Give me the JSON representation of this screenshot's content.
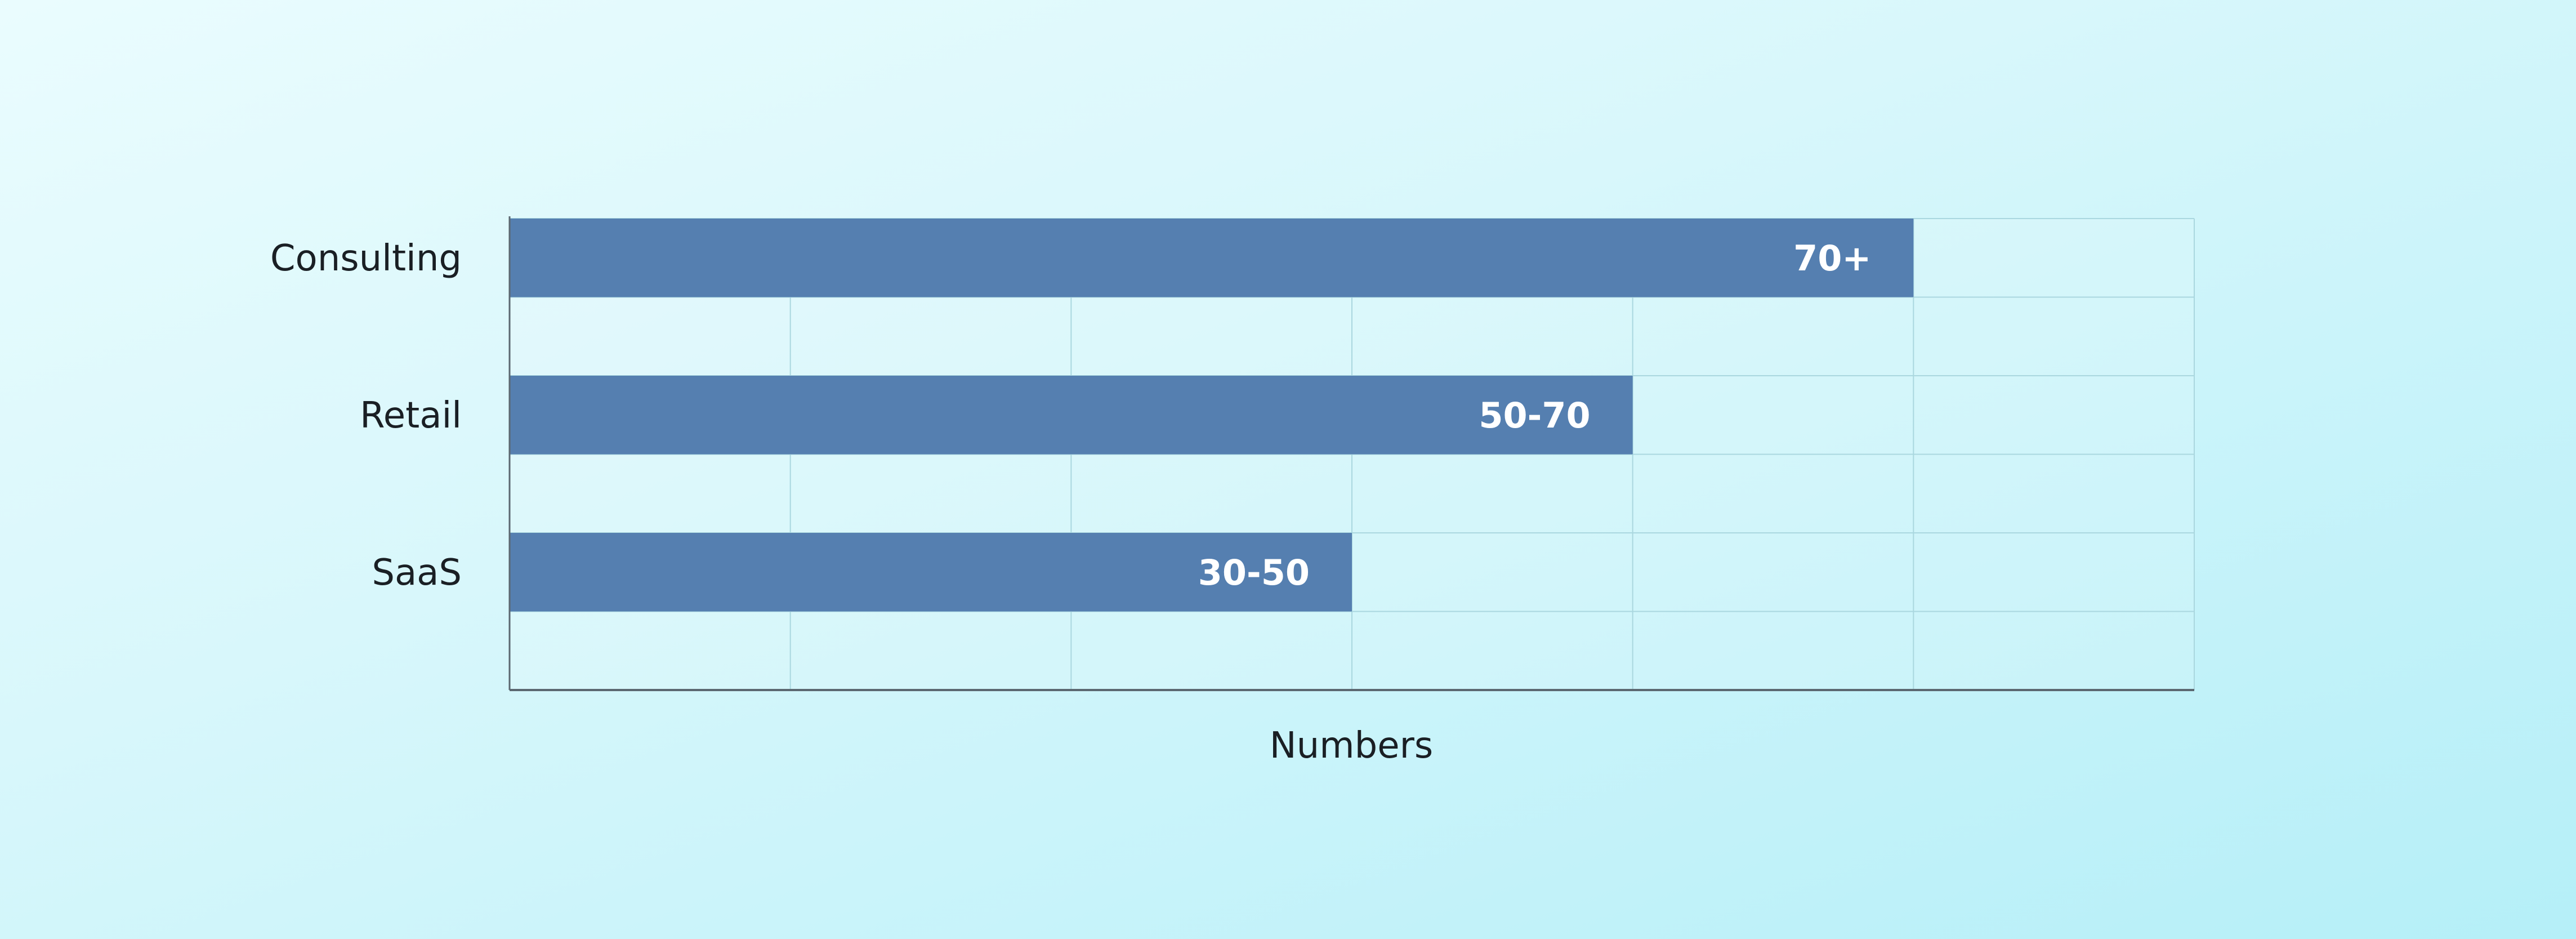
{
  "chart_data": {
    "type": "bar",
    "orientation": "horizontal",
    "categories": [
      "Consulting",
      "Retail",
      "SaaS"
    ],
    "values": [
      5,
      4,
      3
    ],
    "value_labels": [
      "70+",
      "50-70",
      "30-50"
    ],
    "xlabel": "Numbers",
    "ylabel": "",
    "xlim": [
      0,
      6
    ],
    "grid": true,
    "legend": "none",
    "colors": {
      "bar": "#557fb0",
      "grid": "#aad7df",
      "axis": "#5b6770",
      "text": "#1a1f24"
    }
  }
}
